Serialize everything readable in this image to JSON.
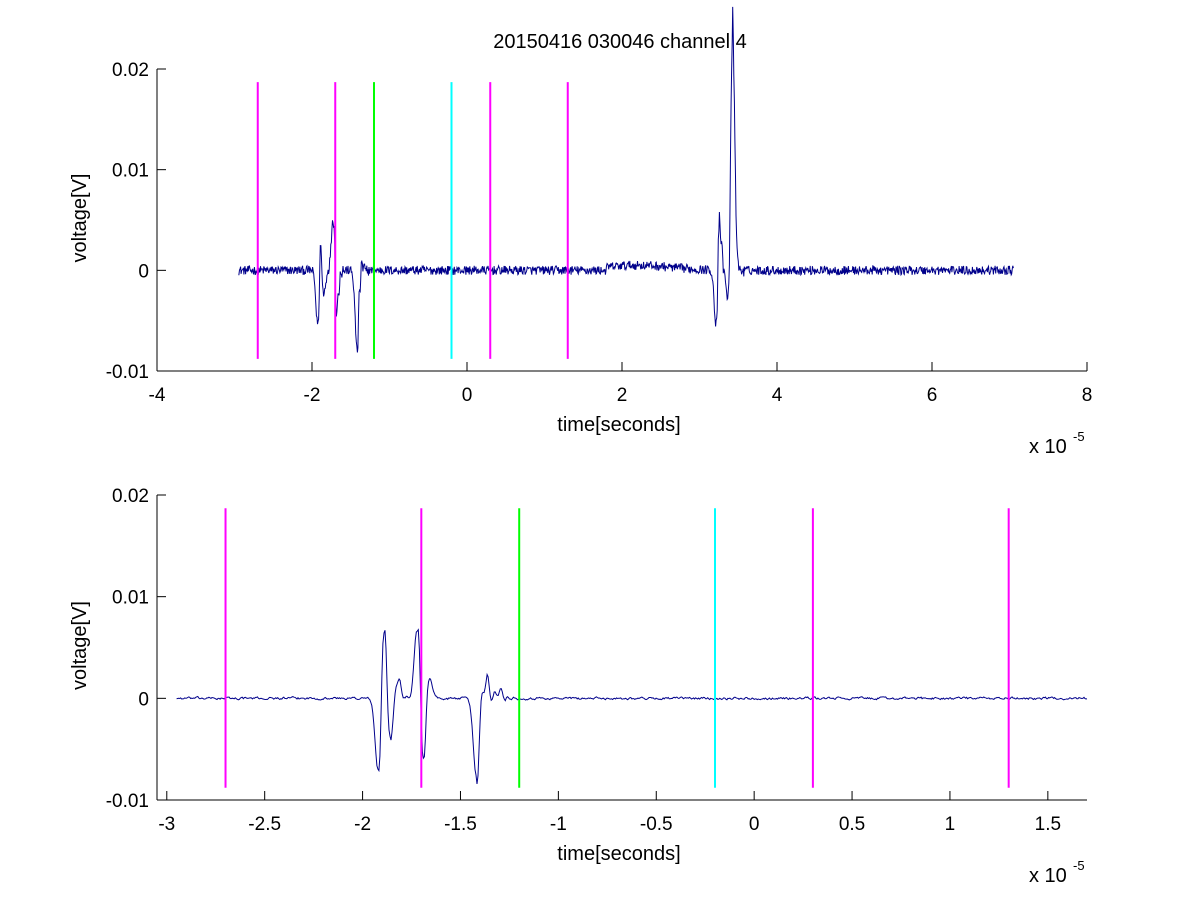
{
  "title": "20150416 030046 channel 4",
  "chart_data": [
    {
      "type": "line",
      "title": "20150416 030046 channel 4",
      "xlabel": "time[seconds]",
      "ylabel": "voltage[V]",
      "x_multiplier_label": "x 10",
      "x_multiplier_exponent": "-5",
      "xlim": [
        -4,
        8
      ],
      "ylim": [
        -0.01,
        0.02
      ],
      "x_ticks": [
        "-4",
        "-2",
        "0",
        "2",
        "4",
        "6",
        "8"
      ],
      "y_ticks": [
        "-0.01",
        "0",
        "0.01",
        "0.02"
      ],
      "grid": false,
      "trace_color": "#00008b",
      "trace_range": [
        -2.95,
        7.05
      ],
      "trace_events": [
        {
          "x": -1.92,
          "y": -0.0078
        },
        {
          "x": -1.89,
          "y": 0.0073
        },
        {
          "x": -1.86,
          "y": -0.0045
        },
        {
          "x": -1.72,
          "y": 0.0074
        },
        {
          "x": -1.69,
          "y": -0.0063
        },
        {
          "x": -1.42,
          "y": -0.0075
        },
        {
          "x": -1.37,
          "y": 0.0008
        },
        {
          "x": 3.22,
          "y": -0.0078
        },
        {
          "x": 3.25,
          "y": 0.0071
        },
        {
          "x": 3.38,
          "y": -0.0055
        },
        {
          "x": 3.42,
          "y": 0.0169
        },
        {
          "x": 3.44,
          "y": 0.009
        }
      ],
      "markers": [
        {
          "x": -2.7,
          "color": "#ff00ff"
        },
        {
          "x": -1.7,
          "color": "#ff00ff"
        },
        {
          "x": -1.2,
          "color": "#00ff00"
        },
        {
          "x": -0.2,
          "color": "#00ffff"
        },
        {
          "x": 0.3,
          "color": "#ff00ff"
        },
        {
          "x": 1.3,
          "color": "#ff00ff"
        }
      ],
      "marker_range": [
        -0.0088,
        0.0187
      ]
    },
    {
      "type": "line",
      "xlabel": "time[seconds]",
      "ylabel": "voltage[V]",
      "x_multiplier_label": "x 10",
      "x_multiplier_exponent": "-5",
      "xlim": [
        -3.05,
        1.7
      ],
      "ylim": [
        -0.01,
        0.02
      ],
      "x_ticks": [
        "-3",
        "-2.5",
        "-2",
        "-1.5",
        "-1",
        "-0.5",
        "0",
        "0.5",
        "1",
        "1.5"
      ],
      "y_ticks": [
        "-0.01",
        "0",
        "0.01",
        "0.02"
      ],
      "grid": false,
      "trace_color": "#00008b",
      "trace_range": [
        -2.95,
        1.7
      ],
      "trace_events": [
        {
          "x": -1.92,
          "y": -0.0078
        },
        {
          "x": -1.89,
          "y": 0.0073
        },
        {
          "x": -1.86,
          "y": -0.0045
        },
        {
          "x": -1.82,
          "y": 0.0018
        },
        {
          "x": -1.72,
          "y": 0.0074
        },
        {
          "x": -1.69,
          "y": -0.0063
        },
        {
          "x": -1.66,
          "y": 0.0025
        },
        {
          "x": -1.42,
          "y": -0.0075
        },
        {
          "x": -1.37,
          "y": 0.0018
        },
        {
          "x": -1.3,
          "y": 0.0008
        }
      ],
      "markers": [
        {
          "x": -2.7,
          "color": "#ff00ff"
        },
        {
          "x": -1.7,
          "color": "#ff00ff"
        },
        {
          "x": -1.2,
          "color": "#00ff00"
        },
        {
          "x": -0.2,
          "color": "#00ffff"
        },
        {
          "x": 0.3,
          "color": "#ff00ff"
        },
        {
          "x": 1.3,
          "color": "#ff00ff"
        }
      ],
      "marker_range": [
        -0.0088,
        0.0187
      ]
    }
  ]
}
